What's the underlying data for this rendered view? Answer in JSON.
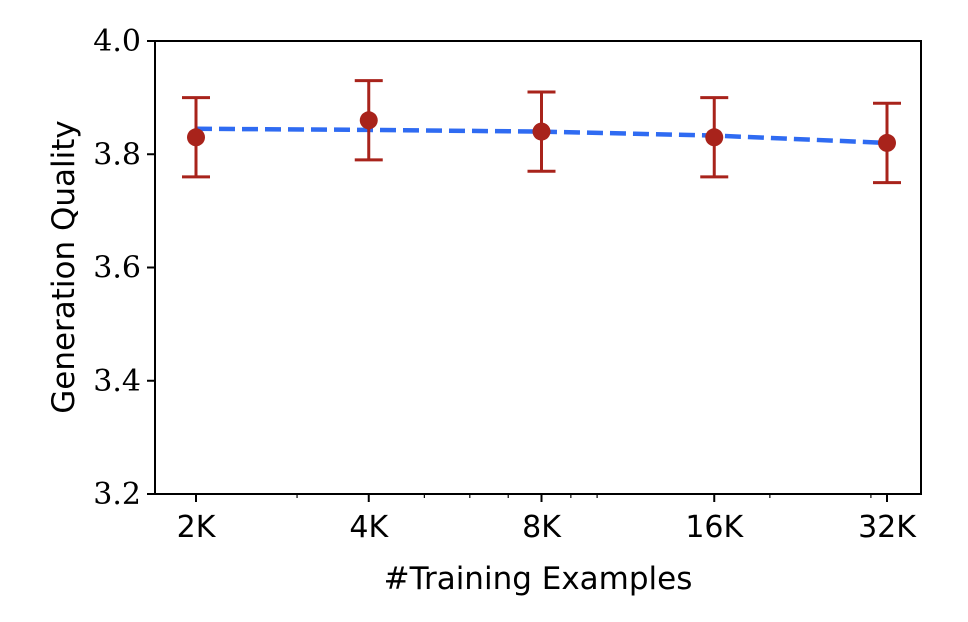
{
  "chart_data": {
    "type": "line",
    "title": "",
    "xlabel": "#Training Examples",
    "ylabel": "Generation Quality",
    "x_scale": "log2",
    "categories": [
      "2K",
      "4K",
      "8K",
      "16K",
      "32K"
    ],
    "x": [
      2000,
      4000,
      8000,
      16000,
      32000
    ],
    "ylim": [
      3.2,
      4.0
    ],
    "yticks": [
      "3.2",
      "3.4",
      "3.6",
      "3.8",
      "4.0"
    ],
    "grid": false,
    "series": [
      {
        "style": "markers-with-errorbars",
        "color": "#a8231b",
        "values": [
          3.83,
          3.86,
          3.84,
          3.83,
          3.82
        ],
        "err_low": [
          3.76,
          3.79,
          3.77,
          3.76,
          3.75
        ],
        "err_high": [
          3.9,
          3.93,
          3.91,
          3.9,
          3.89
        ]
      },
      {
        "style": "dashed-line",
        "color": "#2f6bf2",
        "values": [
          3.845,
          3.843,
          3.84,
          3.833,
          3.82
        ]
      }
    ]
  }
}
